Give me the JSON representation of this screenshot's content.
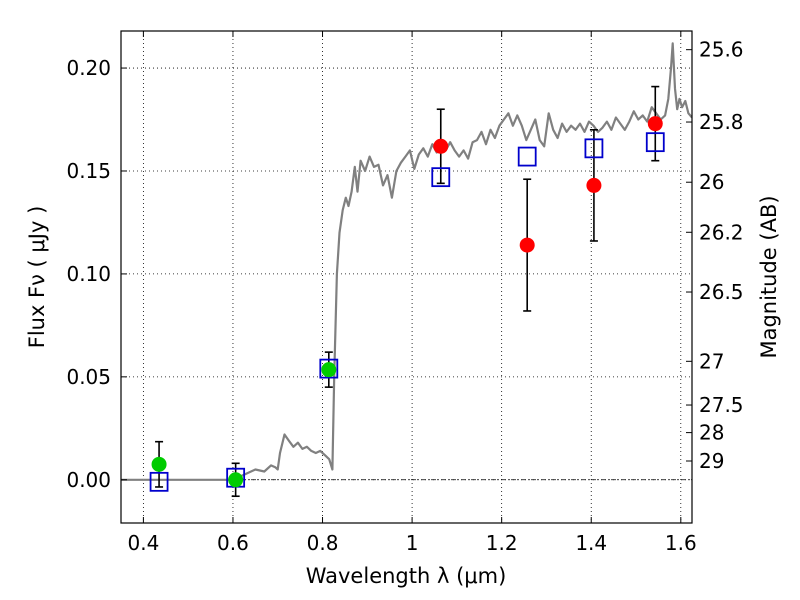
{
  "chart_data": {
    "type": "scatter",
    "xlabel": "Wavelength  λ (μm)",
    "ylabel": "Flux  Fν  ( μJy )",
    "y2label": "Magnitude (AB)",
    "xlim": [
      0.35,
      1.625
    ],
    "ylim": [
      -0.021,
      0.218
    ],
    "grid": true,
    "x_ticks": [
      {
        "v": 0.4,
        "label": "0.4"
      },
      {
        "v": 0.6,
        "label": "0.6"
      },
      {
        "v": 0.8,
        "label": "0.8"
      },
      {
        "v": 1.0,
        "label": "1"
      },
      {
        "v": 1.2,
        "label": "1.2"
      },
      {
        "v": 1.4,
        "label": "1.4"
      },
      {
        "v": 1.6,
        "label": "1.6"
      }
    ],
    "y_ticks": [
      {
        "v": 0.0,
        "label": "0.00"
      },
      {
        "v": 0.05,
        "label": "0.05"
      },
      {
        "v": 0.1,
        "label": "0.10"
      },
      {
        "v": 0.15,
        "label": "0.15"
      },
      {
        "v": 0.2,
        "label": "0.20"
      }
    ],
    "y2_ticks": [
      {
        "mag": 25.6,
        "label": "25.6"
      },
      {
        "mag": 25.8,
        "label": "25.8"
      },
      {
        "mag": 26.0,
        "label": "26"
      },
      {
        "mag": 26.2,
        "label": "26.2"
      },
      {
        "mag": 26.5,
        "label": "26.5"
      },
      {
        "mag": 27.0,
        "label": "27"
      },
      {
        "mag": 27.5,
        "label": "27.5"
      },
      {
        "mag": 28.0,
        "label": "28"
      },
      {
        "mag": 29.0,
        "label": "29"
      }
    ],
    "zero_line": 0.0,
    "colors": {
      "model": "#808080",
      "detection": "#ff0000",
      "nondetection": "#00cc00",
      "synthetic": "#0000cc"
    },
    "model_spectrum": [
      [
        0.35,
        0.0
      ],
      [
        0.5,
        0.0
      ],
      [
        0.6,
        0.0
      ],
      [
        0.63,
        0.003
      ],
      [
        0.65,
        0.005
      ],
      [
        0.67,
        0.004
      ],
      [
        0.685,
        0.007
      ],
      [
        0.695,
        0.006
      ],
      [
        0.7,
        0.005
      ],
      [
        0.705,
        0.013
      ],
      [
        0.715,
        0.022
      ],
      [
        0.725,
        0.019
      ],
      [
        0.735,
        0.016
      ],
      [
        0.745,
        0.018
      ],
      [
        0.755,
        0.015
      ],
      [
        0.765,
        0.016
      ],
      [
        0.775,
        0.014
      ],
      [
        0.785,
        0.013
      ],
      [
        0.795,
        0.014
      ],
      [
        0.805,
        0.012
      ],
      [
        0.815,
        0.01
      ],
      [
        0.822,
        0.005
      ],
      [
        0.826,
        0.05
      ],
      [
        0.832,
        0.1
      ],
      [
        0.838,
        0.12
      ],
      [
        0.845,
        0.131
      ],
      [
        0.852,
        0.137
      ],
      [
        0.858,
        0.133
      ],
      [
        0.865,
        0.14
      ],
      [
        0.872,
        0.152
      ],
      [
        0.878,
        0.14
      ],
      [
        0.885,
        0.155
      ],
      [
        0.895,
        0.15
      ],
      [
        0.905,
        0.157
      ],
      [
        0.915,
        0.152
      ],
      [
        0.925,
        0.153
      ],
      [
        0.935,
        0.143
      ],
      [
        0.945,
        0.148
      ],
      [
        0.955,
        0.137
      ],
      [
        0.965,
        0.15
      ],
      [
        0.975,
        0.154
      ],
      [
        0.985,
        0.157
      ],
      [
        0.995,
        0.16
      ],
      [
        1.005,
        0.151
      ],
      [
        1.015,
        0.158
      ],
      [
        1.025,
        0.161
      ],
      [
        1.035,
        0.157
      ],
      [
        1.045,
        0.163
      ],
      [
        1.055,
        0.159
      ],
      [
        1.065,
        0.163
      ],
      [
        1.075,
        0.16
      ],
      [
        1.085,
        0.164
      ],
      [
        1.095,
        0.16
      ],
      [
        1.105,
        0.157
      ],
      [
        1.115,
        0.16
      ],
      [
        1.125,
        0.156
      ],
      [
        1.135,
        0.164
      ],
      [
        1.145,
        0.165
      ],
      [
        1.155,
        0.169
      ],
      [
        1.165,
        0.163
      ],
      [
        1.175,
        0.17
      ],
      [
        1.185,
        0.166
      ],
      [
        1.195,
        0.172
      ],
      [
        1.205,
        0.175
      ],
      [
        1.215,
        0.178
      ],
      [
        1.225,
        0.172
      ],
      [
        1.235,
        0.177
      ],
      [
        1.245,
        0.172
      ],
      [
        1.255,
        0.165
      ],
      [
        1.265,
        0.17
      ],
      [
        1.275,
        0.175
      ],
      [
        1.285,
        0.165
      ],
      [
        1.295,
        0.162
      ],
      [
        1.305,
        0.178
      ],
      [
        1.315,
        0.17
      ],
      [
        1.325,
        0.166
      ],
      [
        1.335,
        0.173
      ],
      [
        1.345,
        0.169
      ],
      [
        1.355,
        0.172
      ],
      [
        1.365,
        0.17
      ],
      [
        1.375,
        0.173
      ],
      [
        1.385,
        0.169
      ],
      [
        1.395,
        0.174
      ],
      [
        1.405,
        0.172
      ],
      [
        1.415,
        0.169
      ],
      [
        1.425,
        0.171
      ],
      [
        1.435,
        0.174
      ],
      [
        1.445,
        0.17
      ],
      [
        1.455,
        0.176
      ],
      [
        1.465,
        0.173
      ],
      [
        1.475,
        0.17
      ],
      [
        1.485,
        0.174
      ],
      [
        1.495,
        0.179
      ],
      [
        1.505,
        0.175
      ],
      [
        1.515,
        0.177
      ],
      [
        1.525,
        0.174
      ],
      [
        1.535,
        0.181
      ],
      [
        1.545,
        0.178
      ],
      [
        1.555,
        0.175
      ],
      [
        1.565,
        0.177
      ],
      [
        1.572,
        0.185
      ],
      [
        1.578,
        0.2
      ],
      [
        1.582,
        0.212
      ],
      [
        1.587,
        0.19
      ],
      [
        1.592,
        0.18
      ],
      [
        1.597,
        0.185
      ],
      [
        1.603,
        0.181
      ],
      [
        1.61,
        0.184
      ],
      [
        1.617,
        0.178
      ],
      [
        1.625,
        0.176
      ]
    ],
    "synthetic_photometry": [
      {
        "x": 0.435,
        "y": -0.001
      },
      {
        "x": 0.606,
        "y": 0.001
      },
      {
        "x": 0.814,
        "y": 0.054
      },
      {
        "x": 1.064,
        "y": 0.147
      },
      {
        "x": 1.257,
        "y": 0.157
      },
      {
        "x": 1.406,
        "y": 0.161
      },
      {
        "x": 1.543,
        "y": 0.164
      }
    ],
    "detections": [
      {
        "x": 1.064,
        "y": 0.162,
        "err": 0.018
      },
      {
        "x": 1.257,
        "y": 0.114,
        "err": 0.032
      },
      {
        "x": 1.406,
        "y": 0.143,
        "err": 0.027
      },
      {
        "x": 1.543,
        "y": 0.173,
        "err": 0.018
      }
    ],
    "nondetections": [
      {
        "x": 0.435,
        "y": 0.0075,
        "err": 0.011
      },
      {
        "x": 0.606,
        "y": 0.0,
        "err": 0.008
      },
      {
        "x": 0.814,
        "y": 0.0535,
        "err": 0.0085
      }
    ]
  }
}
